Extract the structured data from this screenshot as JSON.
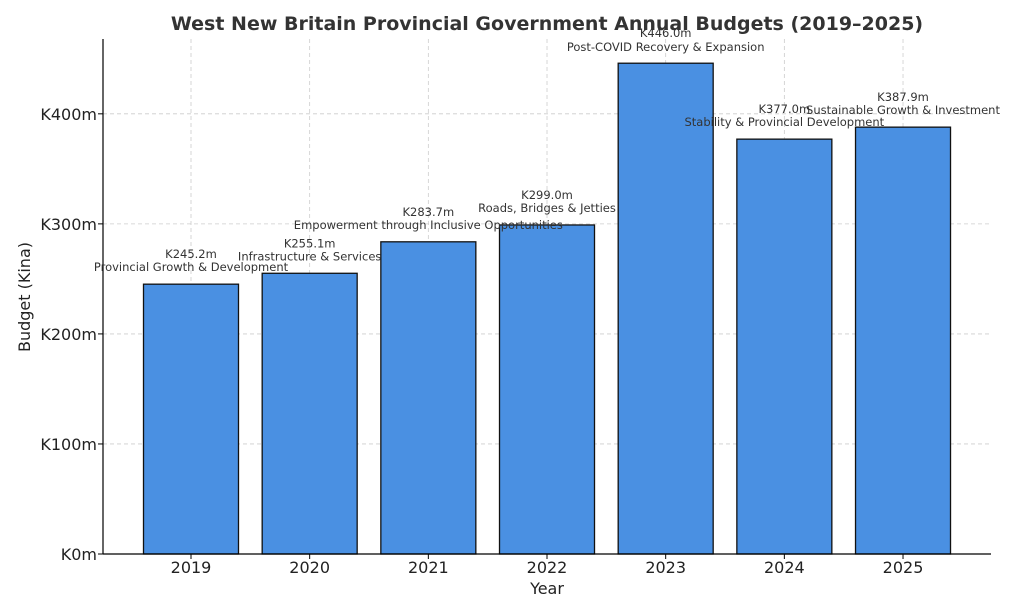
{
  "chart_data": {
    "type": "bar",
    "title": "West New Britain Provincial Government Annual Budgets (2019–2025)",
    "xlabel": "Year",
    "ylabel": "Budget (Kina)",
    "categories": [
      "2019",
      "2020",
      "2021",
      "2022",
      "2023",
      "2024",
      "2025"
    ],
    "values": [
      245.2,
      255.1,
      283.7,
      299.0,
      446.0,
      377.0,
      387.9
    ],
    "value_labels": [
      "K245.2m",
      "K255.1m",
      "K283.7m",
      "K299.0m",
      "K446.0m",
      "K377.0m",
      "K387.9m"
    ],
    "annotations": [
      "Provincial Growth & Development",
      "Infrastructure & Services",
      "Empowerment through Inclusive Opportunities",
      "Roads, Bridges & Jetties",
      "Post-COVID Recovery & Expansion",
      "Stability & Provincial Development",
      "Sustainable Growth & Investment"
    ],
    "yticks": [
      0,
      100,
      200,
      300,
      400
    ],
    "ytick_labels": [
      "K0m",
      "K100m",
      "K200m",
      "K300m",
      "K400m"
    ],
    "ylim": [
      0,
      468
    ],
    "grid": true,
    "colors": {
      "bar": "#4a90e2",
      "edge": "#111111",
      "grid": "#cccccc",
      "title": "#333333"
    }
  }
}
